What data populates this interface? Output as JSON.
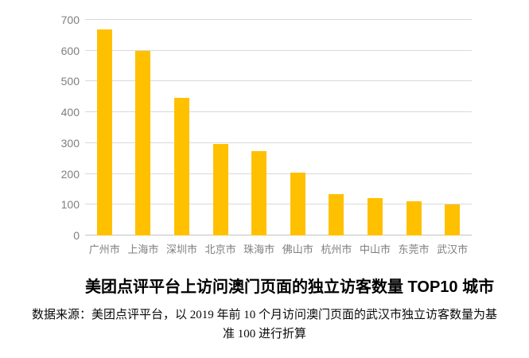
{
  "chart_data": {
    "type": "bar",
    "title": "美团点评平台上访问澳门页面的独立访客数量 TOP10 城市",
    "categories": [
      "广州市",
      "上海市",
      "深圳市",
      "北京市",
      "珠海市",
      "佛山市",
      "杭州市",
      "中山市",
      "东莞市",
      "武汉市"
    ],
    "values": [
      670,
      600,
      448,
      297,
      275,
      205,
      135,
      122,
      110,
      100
    ],
    "xlabel": "",
    "ylabel": "",
    "ylim": [
      0,
      700
    ],
    "yticks": [
      0,
      100,
      200,
      300,
      400,
      500,
      600,
      700
    ],
    "grid": "horizontal",
    "legend_position": "none",
    "bar_color": "#FFC000",
    "gridline_color": "#D9D9D9",
    "axis_line_color": "#C3C3C3",
    "tick_label_color": "#7F7F7F",
    "source_note_lines": [
      "数据来源：美团点评平台，以 2019 年前 10 个月访问澳门页面的武汉市独立访客数量为基",
      "准 100 进行折算"
    ]
  }
}
